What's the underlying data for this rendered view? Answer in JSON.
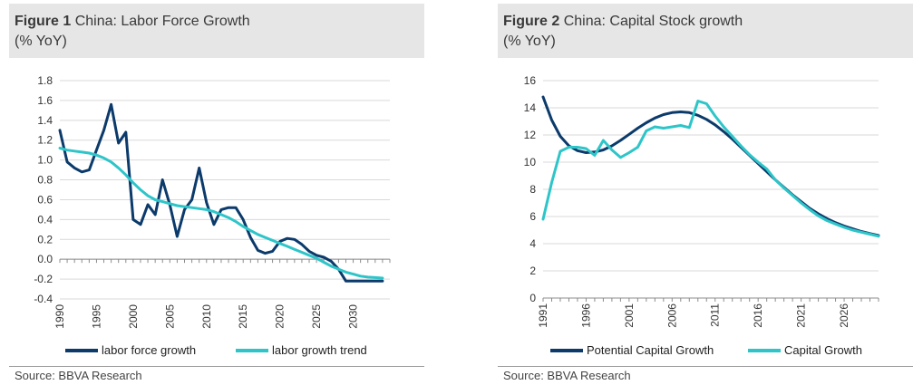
{
  "figure1": {
    "label": "Figure 1",
    "title": "China: Labor Force Growth",
    "subtitle": "(% YoY)",
    "source": "Source: BBVA Research",
    "chart_data": {
      "type": "line",
      "title": "China: Labor Force Growth",
      "ylabel": "(% YoY)",
      "ylim": [
        -0.4,
        1.8
      ],
      "yticks": [
        "1.8",
        "1.6",
        "1.4",
        "1.2",
        "1.0",
        "0.8",
        "0.6",
        "0.4",
        "0.2",
        "0.0",
        "-0.2",
        "-0.4"
      ],
      "xlim": [
        1990,
        2035
      ],
      "xticks": [
        "1990",
        "1995",
        "2000",
        "2005",
        "2010",
        "2015",
        "2020",
        "2025",
        "2030"
      ],
      "grid": "horizontal",
      "legend": "bottom",
      "colors": {
        "labor_force_growth": "#0b3a6b",
        "labor_growth_trend": "#2ec5c9"
      },
      "series": [
        {
          "name": "labor force growth",
          "x": [
            1990,
            1991,
            1992,
            1993,
            1994,
            1995,
            1996,
            1997,
            1998,
            1999,
            2000,
            2001,
            2002,
            2003,
            2004,
            2005,
            2006,
            2007,
            2008,
            2009,
            2010,
            2011,
            2012,
            2013,
            2014,
            2015,
            2016,
            2017,
            2018,
            2019,
            2020,
            2021,
            2022,
            2023,
            2024,
            2025,
            2026,
            2027,
            2028,
            2029,
            2030,
            2031,
            2032,
            2033,
            2034
          ],
          "y": [
            1.3,
            0.98,
            0.92,
            0.88,
            0.9,
            1.1,
            1.3,
            1.56,
            1.17,
            1.28,
            0.4,
            0.35,
            0.55,
            0.45,
            0.8,
            0.55,
            0.23,
            0.5,
            0.6,
            0.92,
            0.57,
            0.35,
            0.5,
            0.52,
            0.52,
            0.4,
            0.22,
            0.09,
            0.06,
            0.08,
            0.18,
            0.21,
            0.2,
            0.15,
            0.08,
            0.04,
            0.02,
            -0.02,
            -0.1,
            -0.22,
            -0.22,
            -0.22,
            -0.22,
            -0.22,
            -0.22
          ]
        },
        {
          "name": "labor growth trend",
          "x": [
            1990,
            1991,
            1992,
            1993,
            1994,
            1995,
            1996,
            1997,
            1998,
            1999,
            2000,
            2001,
            2002,
            2003,
            2004,
            2005,
            2006,
            2007,
            2008,
            2009,
            2010,
            2011,
            2012,
            2013,
            2014,
            2015,
            2016,
            2017,
            2018,
            2019,
            2020,
            2021,
            2022,
            2023,
            2024,
            2025,
            2026,
            2027,
            2028,
            2029,
            2030,
            2031,
            2032,
            2033,
            2034
          ],
          "y": [
            1.12,
            1.1,
            1.09,
            1.08,
            1.07,
            1.05,
            1.02,
            0.98,
            0.92,
            0.85,
            0.77,
            0.7,
            0.64,
            0.6,
            0.58,
            0.56,
            0.54,
            0.53,
            0.52,
            0.51,
            0.5,
            0.48,
            0.45,
            0.42,
            0.38,
            0.33,
            0.29,
            0.25,
            0.22,
            0.19,
            0.16,
            0.13,
            0.1,
            0.07,
            0.04,
            0.01,
            -0.03,
            -0.07,
            -0.1,
            -0.13,
            -0.15,
            -0.17,
            -0.18,
            -0.185,
            -0.19
          ]
        }
      ]
    }
  },
  "figure2": {
    "label": "Figure 2",
    "title": "China: Capital Stock growth",
    "subtitle": "(% YoY)",
    "source": "Source: BBVA Research",
    "chart_data": {
      "type": "line",
      "title": "China: Capital Stock growth",
      "ylabel": "(% YoY)",
      "ylim": [
        0,
        16
      ],
      "yticks": [
        "16",
        "14",
        "12",
        "10",
        "8",
        "6",
        "4",
        "2",
        "0"
      ],
      "xlim": [
        1991,
        2030
      ],
      "xticks": [
        "1991",
        "1996",
        "2001",
        "2006",
        "2011",
        "2016",
        "2021",
        "2026"
      ],
      "grid": "horizontal",
      "legend": "bottom",
      "colors": {
        "potential_capital_growth": "#0b3a6b",
        "capital_growth": "#2ec5c9"
      },
      "series": [
        {
          "name": "Potential Capital Growth",
          "x": [
            1991,
            1992,
            1993,
            1994,
            1995,
            1996,
            1997,
            1998,
            1999,
            2000,
            2001,
            2002,
            2003,
            2004,
            2005,
            2006,
            2007,
            2008,
            2009,
            2010,
            2011,
            2012,
            2013,
            2014,
            2015,
            2016,
            2017,
            2018,
            2019,
            2020,
            2021,
            2022,
            2023,
            2024,
            2025,
            2026,
            2027,
            2028,
            2029,
            2030
          ],
          "y": [
            14.8,
            13.1,
            11.9,
            11.2,
            10.85,
            10.7,
            10.75,
            10.9,
            11.2,
            11.6,
            12.05,
            12.5,
            12.9,
            13.25,
            13.5,
            13.65,
            13.7,
            13.65,
            13.45,
            13.15,
            12.75,
            12.25,
            11.7,
            11.1,
            10.5,
            9.9,
            9.3,
            8.7,
            8.15,
            7.6,
            7.1,
            6.6,
            6.2,
            5.85,
            5.55,
            5.3,
            5.1,
            4.9,
            4.75,
            4.6
          ]
        },
        {
          "name": "Capital Growth",
          "x": [
            1991,
            1992,
            1993,
            1994,
            1995,
            1996,
            1997,
            1998,
            1999,
            2000,
            2001,
            2002,
            2003,
            2004,
            2005,
            2006,
            2007,
            2008,
            2009,
            2010,
            2011,
            2012,
            2013,
            2014,
            2015,
            2016,
            2017,
            2018,
            2019,
            2020,
            2021,
            2022,
            2023,
            2024,
            2025,
            2026,
            2027,
            2028,
            2029,
            2030
          ],
          "y": [
            5.8,
            8.5,
            10.8,
            11.1,
            11.1,
            11.0,
            10.5,
            11.6,
            10.9,
            10.35,
            10.7,
            11.1,
            12.3,
            12.6,
            12.5,
            12.6,
            12.7,
            12.55,
            14.5,
            14.3,
            13.4,
            12.6,
            11.9,
            11.2,
            10.55,
            10.0,
            9.5,
            8.7,
            8.1,
            7.55,
            7.0,
            6.5,
            6.05,
            5.7,
            5.45,
            5.2,
            5.0,
            4.85,
            4.7,
            4.55
          ]
        }
      ]
    }
  }
}
